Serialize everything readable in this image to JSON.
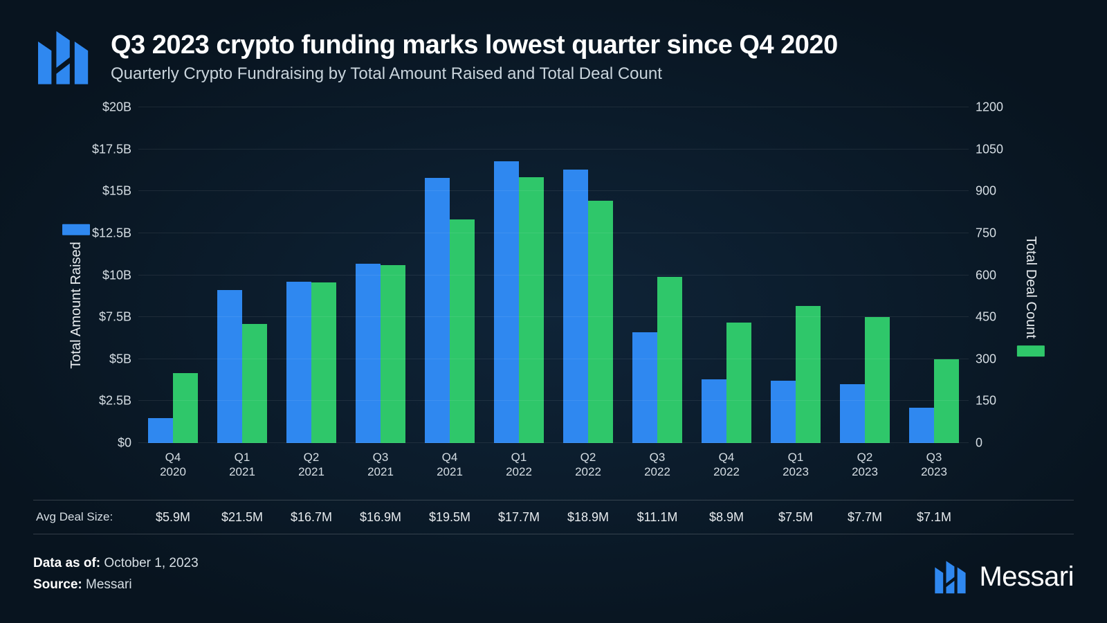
{
  "header": {
    "title": "Q3 2023 crypto funding marks lowest quarter since Q4 2020",
    "subtitle": "Quarterly Crypto Fundraising by Total Amount Raised and Total Deal Count"
  },
  "chart": {
    "type": "grouped-bar-dual-axis",
    "background_color": "#0b1b2b",
    "grid_color": "rgba(255,255,255,0.08)",
    "font_family": "Helvetica, Arial, sans-serif",
    "label_color": "#d6dee4",
    "label_fontsize": 18,
    "axis_title_fontsize": 20,
    "bar_width_pct": 36,
    "left_axis": {
      "title": "Total Amount Raised",
      "color": "#2f88f0",
      "min": 0,
      "max": 20,
      "unit_prefix": "$",
      "unit_suffix": "B",
      "tick_step": 2.5,
      "ticks": [
        "$0",
        "$2.5B",
        "$5B",
        "$7.5B",
        "$10B",
        "$12.5B",
        "$15B",
        "$17.5B",
        "$20B"
      ]
    },
    "right_axis": {
      "title": "Total Deal Count",
      "color": "#2fc76a",
      "min": 0,
      "max": 1200,
      "tick_step": 150,
      "ticks": [
        "0",
        "150",
        "300",
        "450",
        "600",
        "750",
        "900",
        "1050",
        "1200"
      ]
    },
    "categories": [
      {
        "q": "Q4",
        "y": "2020"
      },
      {
        "q": "Q1",
        "y": "2021"
      },
      {
        "q": "Q2",
        "y": "2021"
      },
      {
        "q": "Q3",
        "y": "2021"
      },
      {
        "q": "Q4",
        "y": "2021"
      },
      {
        "q": "Q1",
        "y": "2022"
      },
      {
        "q": "Q2",
        "y": "2022"
      },
      {
        "q": "Q3",
        "y": "2022"
      },
      {
        "q": "Q4",
        "y": "2022"
      },
      {
        "q": "Q1",
        "y": "2023"
      },
      {
        "q": "Q2",
        "y": "2023"
      },
      {
        "q": "Q3",
        "y": "2023"
      }
    ],
    "series_left_values": [
      1.5,
      9.1,
      9.6,
      10.7,
      15.8,
      16.8,
      16.3,
      6.6,
      3.8,
      3.7,
      3.5,
      2.1
    ],
    "series_right_values": [
      250,
      425,
      575,
      635,
      800,
      950,
      865,
      595,
      430,
      490,
      450,
      300
    ],
    "avg_deal_size_label": "Avg Deal Size:",
    "avg_deal_size": [
      "$5.9M",
      "$21.5M",
      "$16.7M",
      "$16.9M",
      "$19.5M",
      "$17.7M",
      "$18.9M",
      "$11.1M",
      "$8.9M",
      "$7.5M",
      "$7.7M",
      "$7.1M"
    ]
  },
  "footer": {
    "data_as_of_label": "Data as of:",
    "data_as_of": "October 1, 2023",
    "source_label": "Source:",
    "source": "Messari",
    "brand": "Messari",
    "brand_color": "#2f88f0"
  }
}
